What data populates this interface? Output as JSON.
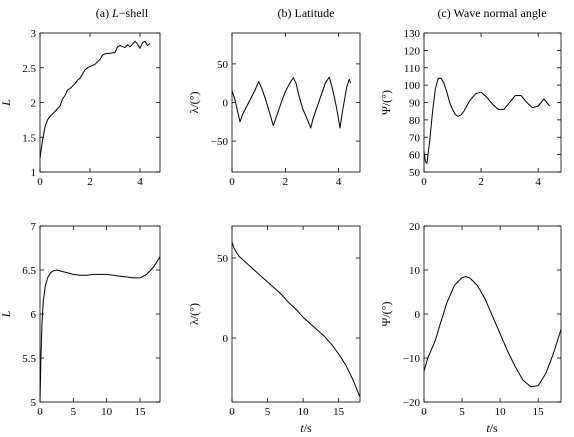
{
  "panel_titles": {
    "a": {
      "prefix": "(a) ",
      "var": "L",
      "suffix": "−shell"
    },
    "b": "(b) Latitude",
    "c": "(c) Wave normal angle"
  },
  "x_axis_label": {
    "var": "t",
    "unit": "/s"
  },
  "chart_data": [
    {
      "id": "a-top",
      "type": "line",
      "ylabel": "L",
      "ylabel_italic": true,
      "xlim": [
        0,
        4.8
      ],
      "ylim": [
        1,
        3
      ],
      "xticks": [
        0,
        2,
        4
      ],
      "xtick_labels": [
        "0",
        "2",
        "4"
      ],
      "yticks": [
        1,
        1.5,
        2,
        2.5,
        3
      ],
      "ytick_labels": [
        "1",
        "1.5",
        "2",
        "2.5",
        "3"
      ],
      "series": [
        {
          "x": [
            0,
            0.1,
            0.2,
            0.3,
            0.4,
            0.6,
            0.8,
            0.9,
            1.0,
            1.1,
            1.2,
            1.4,
            1.5,
            1.6,
            1.8,
            1.9,
            2.0,
            2.2,
            2.4,
            2.5,
            2.6,
            2.8,
            3.0,
            3.1,
            3.2,
            3.4,
            3.5,
            3.6,
            3.8,
            3.9,
            4.0,
            4.1,
            4.2,
            4.3,
            4.4
          ],
          "y": [
            1.2,
            1.45,
            1.65,
            1.75,
            1.8,
            1.87,
            1.95,
            2.05,
            2.1,
            2.18,
            2.2,
            2.27,
            2.32,
            2.35,
            2.47,
            2.5,
            2.52,
            2.55,
            2.62,
            2.68,
            2.7,
            2.71,
            2.72,
            2.8,
            2.82,
            2.79,
            2.83,
            2.8,
            2.88,
            2.84,
            2.78,
            2.86,
            2.88,
            2.82,
            2.85
          ]
        }
      ]
    },
    {
      "id": "b-top",
      "type": "line",
      "ylabel": "λ/(°)",
      "ylabel_italic": false,
      "xlim": [
        0,
        4.8
      ],
      "ylim": [
        -90,
        90
      ],
      "xticks": [
        0,
        2,
        4
      ],
      "xtick_labels": [
        "0",
        "2",
        "4"
      ],
      "yticks": [
        -50,
        0,
        50
      ],
      "ytick_labels": [
        "−50",
        "0",
        "50"
      ],
      "series": [
        {
          "x": [
            0,
            0.1,
            0.2,
            0.3,
            0.4,
            0.55,
            0.7,
            0.85,
            1.0,
            1.1,
            1.25,
            1.4,
            1.55,
            1.7,
            1.85,
            2.0,
            2.15,
            2.3,
            2.4,
            2.5,
            2.65,
            2.8,
            2.95,
            3.05,
            3.2,
            3.35,
            3.5,
            3.65,
            3.75,
            3.85,
            3.95,
            4.05,
            4.15,
            4.3,
            4.4,
            4.45
          ],
          "y": [
            15,
            5,
            -10,
            -25,
            -15,
            -5,
            5,
            15,
            27,
            20,
            5,
            -12,
            -30,
            -15,
            0,
            14,
            24,
            32,
            25,
            10,
            -8,
            -20,
            -33,
            -20,
            -5,
            10,
            25,
            33,
            20,
            5,
            -12,
            -33,
            -10,
            20,
            30,
            25
          ]
        }
      ]
    },
    {
      "id": "c-top",
      "type": "line",
      "ylabel": "Ψ/(°)",
      "ylabel_italic": false,
      "xlim": [
        0,
        4.8
      ],
      "ylim": [
        50,
        130
      ],
      "xticks": [
        0,
        2,
        4
      ],
      "xtick_labels": [
        "0",
        "2",
        "4"
      ],
      "yticks": [
        50,
        60,
        70,
        80,
        90,
        100,
        110,
        120,
        130
      ],
      "ytick_labels": [
        "50",
        "60",
        "70",
        "80",
        "90",
        "100",
        "110",
        "120",
        "130"
      ],
      "series": [
        {
          "x": [
            0,
            0.05,
            0.1,
            0.2,
            0.3,
            0.4,
            0.5,
            0.6,
            0.7,
            0.8,
            0.9,
            1.0,
            1.1,
            1.2,
            1.3,
            1.4,
            1.5,
            1.6,
            1.8,
            2.0,
            2.2,
            2.4,
            2.6,
            2.8,
            3.0,
            3.2,
            3.4,
            3.6,
            3.8,
            4.0,
            4.2,
            4.4
          ],
          "y": [
            62,
            56,
            55,
            68,
            85,
            98,
            104,
            104,
            101,
            96,
            90,
            86,
            83,
            82,
            83,
            85,
            88,
            91,
            95,
            96,
            93,
            89,
            86,
            86,
            90,
            94,
            94,
            90,
            87,
            88,
            92,
            88
          ]
        }
      ]
    },
    {
      "id": "a-bottom",
      "type": "line",
      "ylabel": "L",
      "ylabel_italic": true,
      "xlim": [
        0,
        18
      ],
      "ylim": [
        5,
        7
      ],
      "xticks": [
        0,
        5,
        10,
        15
      ],
      "xtick_labels": [
        "0",
        "5",
        "10",
        "15"
      ],
      "yticks": [
        5,
        5.5,
        6,
        6.5,
        7
      ],
      "ytick_labels": [
        "5",
        "5.5",
        "6",
        "6.5",
        "7"
      ],
      "series": [
        {
          "x": [
            0,
            0.15,
            0.3,
            0.5,
            0.8,
            1.2,
            1.6,
            2.0,
            2.5,
            3,
            4,
            5,
            6,
            7,
            8,
            9,
            10,
            11,
            12,
            13,
            14,
            15,
            16,
            17,
            18
          ],
          "y": [
            5.0,
            5.55,
            5.9,
            6.15,
            6.32,
            6.42,
            6.47,
            6.49,
            6.5,
            6.49,
            6.47,
            6.45,
            6.44,
            6.44,
            6.45,
            6.45,
            6.45,
            6.44,
            6.43,
            6.42,
            6.41,
            6.41,
            6.45,
            6.53,
            6.65
          ]
        }
      ]
    },
    {
      "id": "b-bottom",
      "type": "line",
      "ylabel": "λ/(°)",
      "ylabel_italic": false,
      "xlim": [
        0,
        18
      ],
      "ylim": [
        -40,
        70
      ],
      "xticks": [
        0,
        5,
        10,
        15
      ],
      "xtick_labels": [
        "0",
        "5",
        "10",
        "15"
      ],
      "yticks": [
        0,
        50
      ],
      "ytick_labels": [
        "0",
        "50"
      ],
      "series": [
        {
          "x": [
            0,
            0.3,
            0.7,
            1,
            2,
            3,
            4,
            5,
            6,
            7,
            8,
            9,
            10,
            11,
            12,
            13,
            14,
            15,
            16,
            17,
            18
          ],
          "y": [
            60,
            56,
            53,
            51,
            47,
            43,
            39,
            35,
            31,
            27,
            22,
            18,
            13,
            9,
            5,
            1,
            -4,
            -10,
            -17,
            -26,
            -37
          ]
        }
      ]
    },
    {
      "id": "c-bottom",
      "type": "line",
      "ylabel": "Ψ/(°)",
      "ylabel_italic": false,
      "xlim": [
        0,
        18
      ],
      "ylim": [
        -20,
        20
      ],
      "xticks": [
        0,
        5,
        10,
        15
      ],
      "xtick_labels": [
        "0",
        "5",
        "10",
        "15"
      ],
      "yticks": [
        -20,
        -10,
        0,
        10,
        20
      ],
      "ytick_labels": [
        "−20",
        "−10",
        "0",
        "10",
        "20"
      ],
      "series": [
        {
          "x": [
            0,
            0.5,
            1,
            1.5,
            2,
            3,
            4,
            5,
            5.5,
            6,
            7,
            8,
            9,
            10,
            11,
            12,
            13,
            14,
            15,
            16,
            17,
            18
          ],
          "y": [
            -13,
            -10,
            -8,
            -6,
            -3,
            2.5,
            6.5,
            8.3,
            8.5,
            8.2,
            6.5,
            3.5,
            -0.5,
            -4.5,
            -8.5,
            -12,
            -15,
            -16.5,
            -16.3,
            -13.5,
            -9,
            -3.5
          ]
        }
      ]
    }
  ]
}
